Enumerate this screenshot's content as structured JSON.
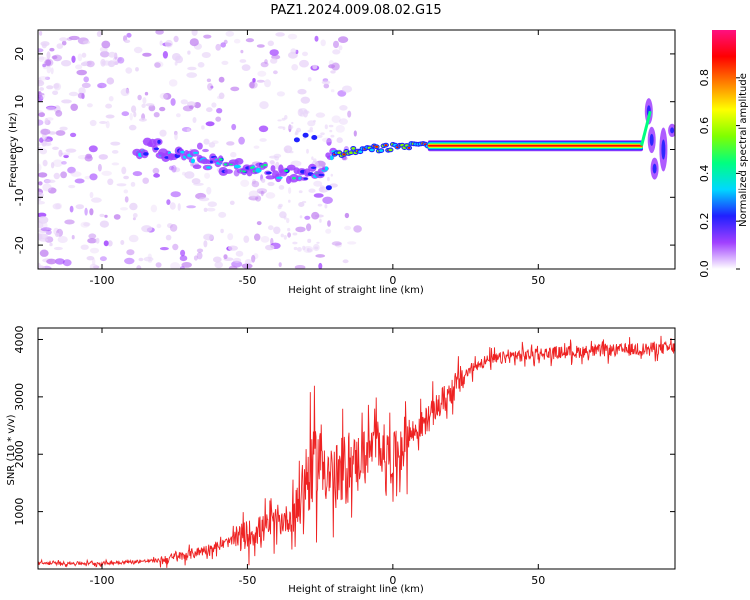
{
  "figure_title": "PAZ1.2024.009.08.02.G15",
  "colors": {
    "snr_line": "#ee2222",
    "axes": "#000000",
    "colormap": [
      "#ffffff",
      "#e8d4f8",
      "#a040ff",
      "#2020ff",
      "#00d8ff",
      "#00ff80",
      "#80ff00",
      "#ffff00",
      "#ff8000",
      "#ff0000",
      "#ff1080"
    ]
  },
  "chart_data": [
    {
      "type": "heatmap",
      "title": "",
      "xlabel": "Height of straight line (km)",
      "ylabel": "Frequency (Hz)",
      "xlim": [
        -122,
        97
      ],
      "ylim": [
        -25,
        25
      ],
      "xticks": [
        -100,
        -50,
        0,
        50
      ],
      "yticks": [
        -20,
        -10,
        0,
        10,
        20
      ],
      "colorbar": {
        "label": "Normalized spectral amplitude",
        "range": [
          0,
          1
        ],
        "ticks": [
          0.0,
          0.2,
          0.4,
          0.6,
          0.8
        ]
      },
      "ridge": {
        "x": [
          -85,
          -70,
          -60,
          -50,
          -40,
          -30,
          -25,
          -20,
          -10,
          0,
          10,
          20,
          40,
          60,
          85,
          88,
          92,
          95
        ],
        "frequency": [
          1,
          -2,
          -3,
          -4,
          -5,
          -5,
          -4,
          -1,
          0,
          0.5,
          1,
          0.8,
          0.8,
          0.8,
          0.8,
          8,
          2,
          4
        ]
      }
    },
    {
      "type": "line",
      "title": "",
      "xlabel": "Height of straight line (km)",
      "ylabel": "SNR (10 * v/v)",
      "xlim": [
        -122,
        97
      ],
      "ylim": [
        0,
        4200
      ],
      "xticks": [
        -100,
        -50,
        0,
        50
      ],
      "yticks": [
        1000,
        2000,
        3000,
        4000
      ],
      "series": [
        {
          "x": [
            -122,
            -100,
            -80,
            -70,
            -60,
            -50,
            -40,
            -35,
            -30,
            -25,
            -20,
            -15,
            -10,
            -5,
            0,
            5,
            10,
            15,
            20,
            25,
            30,
            40,
            50,
            60,
            70,
            80,
            90,
            97
          ],
          "values": [
            100,
            100,
            150,
            250,
            400,
            600,
            800,
            900,
            1500,
            2000,
            1500,
            1800,
            2000,
            2200,
            1900,
            2300,
            2500,
            2800,
            3100,
            3400,
            3600,
            3700,
            3750,
            3780,
            3800,
            3820,
            3840,
            3850
          ]
        }
      ]
    }
  ]
}
